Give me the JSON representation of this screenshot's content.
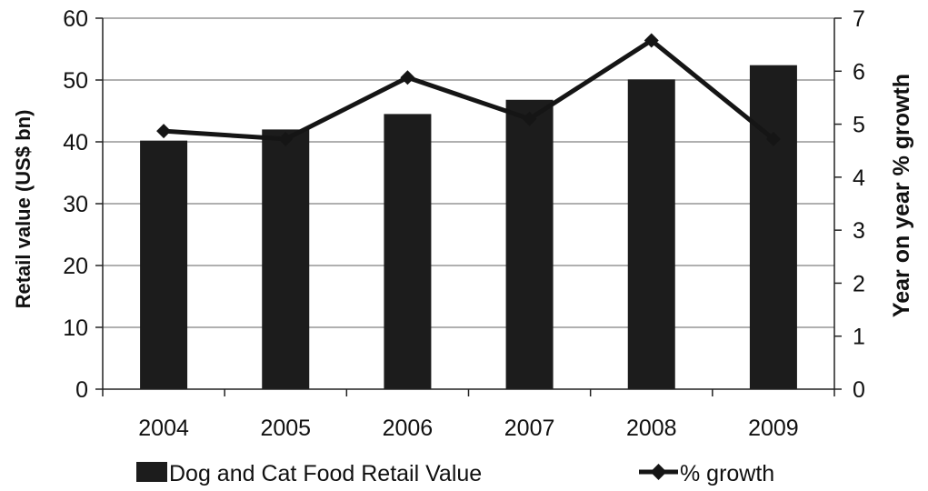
{
  "chart_data": {
    "type": "bar",
    "title": "",
    "categories": [
      "2004",
      "2005",
      "2006",
      "2007",
      "2008",
      "2009"
    ],
    "series": [
      {
        "name": "Dog and Cat Food Retail Value",
        "type": "bar",
        "axis": "left",
        "values": [
          40.2,
          42.0,
          44.5,
          46.8,
          50.1,
          52.4
        ]
      },
      {
        "name": "% growth",
        "type": "line",
        "axis": "right",
        "marker": "diamond",
        "values": [
          4.87,
          4.72,
          5.88,
          5.1,
          6.58,
          4.72
        ]
      }
    ],
    "ylabel_left": "Retail value (US$ bn)",
    "ylabel_right": "Year on year % growth",
    "xlabel": "",
    "ylim_left": [
      0,
      60
    ],
    "ylim_right": [
      0,
      7
    ],
    "yticks_left": [
      "0",
      "10",
      "20",
      "30",
      "40",
      "50",
      "60"
    ],
    "yticks_right": [
      "0",
      "1",
      "2",
      "3",
      "4",
      "5",
      "6",
      "7"
    ],
    "grid": true,
    "legend_position": "bottom",
    "colors": {
      "bar": "#1c1c1c",
      "line": "#151515",
      "grid": "#808080",
      "axis": "#222222"
    }
  }
}
